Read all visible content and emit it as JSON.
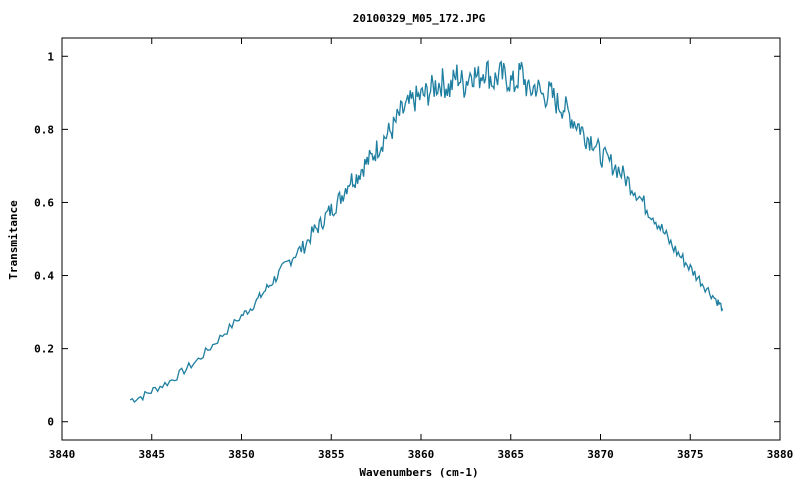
{
  "chart_data": {
    "type": "line",
    "title": "20100329_M05_172.JPG",
    "xlabel": "Wavenumbers (cm-1)",
    "ylabel": "Transmitance",
    "xlim": [
      3840,
      3880
    ],
    "ylim": [
      -0.05,
      1.05
    ],
    "xticks": [
      "3840",
      "3845",
      "3850",
      "3855",
      "3860",
      "3865",
      "3870",
      "3875",
      "3880"
    ],
    "yticks": [
      "0",
      "0.2",
      "0.4",
      "0.6",
      "0.8",
      "1"
    ],
    "xtick_values": [
      3840,
      3845,
      3850,
      3855,
      3860,
      3865,
      3870,
      3875,
      3880
    ],
    "ytick_values": [
      0,
      0.2,
      0.4,
      0.6,
      0.8,
      1
    ],
    "grid": false,
    "series": [
      {
        "color": "#1f7fa0",
        "x": [
          3843.8,
          3844.5,
          3845.2,
          3846.0,
          3846.8,
          3847.6,
          3848.4,
          3849.2,
          3850.0,
          3850.5,
          3851.0,
          3851.5,
          3852.0,
          3852.5,
          3853.0,
          3853.5,
          3854.0,
          3854.4,
          3854.8,
          3855.2,
          3855.6,
          3856.0,
          3856.4,
          3856.8,
          3857.2,
          3857.6,
          3858.0,
          3858.4,
          3858.8,
          3859.2,
          3859.6,
          3860.0,
          3860.4,
          3860.8,
          3861.2,
          3861.6,
          3862.0,
          3862.4,
          3862.8,
          3863.2,
          3863.6,
          3864.0,
          3864.4,
          3864.8,
          3865.2,
          3865.6,
          3866.0,
          3866.4,
          3866.8,
          3867.2,
          3867.6,
          3868.0,
          3868.4,
          3868.8,
          3869.2,
          3869.6,
          3870.0,
          3870.5,
          3871.0,
          3871.5,
          3872.0,
          3872.5,
          3873.0,
          3873.5,
          3874.0,
          3874.5,
          3875.0,
          3875.5,
          3876.0,
          3876.5,
          3876.8
        ],
        "y": [
          0.06,
          0.07,
          0.09,
          0.11,
          0.14,
          0.17,
          0.21,
          0.25,
          0.29,
          0.31,
          0.34,
          0.37,
          0.4,
          0.43,
          0.46,
          0.48,
          0.52,
          0.54,
          0.57,
          0.59,
          0.62,
          0.66,
          0.67,
          0.7,
          0.72,
          0.75,
          0.78,
          0.8,
          0.84,
          0.86,
          0.88,
          0.89,
          0.9,
          0.92,
          0.93,
          0.91,
          0.95,
          0.92,
          0.96,
          0.94,
          0.97,
          0.93,
          0.95,
          0.94,
          0.92,
          0.96,
          0.9,
          0.92,
          0.89,
          0.9,
          0.87,
          0.86,
          0.83,
          0.81,
          0.78,
          0.77,
          0.73,
          0.71,
          0.69,
          0.66,
          0.63,
          0.59,
          0.56,
          0.52,
          0.48,
          0.45,
          0.42,
          0.39,
          0.36,
          0.33,
          0.31
        ]
      }
    ]
  }
}
